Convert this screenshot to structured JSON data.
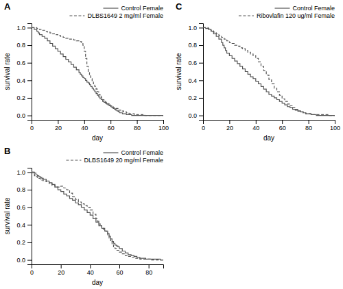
{
  "chart_data": [
    {
      "type": "step",
      "title": "A",
      "xlabel": "day",
      "ylabel": "survival rate",
      "xlim": [
        0,
        100
      ],
      "ylim": [
        -0.05,
        1.05
      ],
      "xticks": [
        0,
        20,
        40,
        60,
        80,
        100
      ],
      "yticks": [
        {
          "value": 0.0,
          "label": "0.0"
        },
        0.2,
        0.4,
        0.6,
        0.8,
        {
          "value": 1.0,
          "label": "1.0"
        }
      ],
      "legend": "upper right",
      "series": [
        {
          "name": "Control Female",
          "color": "#555555",
          "line_style": "solid",
          "x": [
            0,
            2,
            4,
            5,
            6,
            8,
            10,
            12,
            14,
            16,
            18,
            20,
            22,
            24,
            26,
            28,
            30,
            32,
            34,
            36,
            37,
            38,
            39,
            40,
            41,
            42,
            43,
            44,
            45,
            46,
            47,
            48,
            49,
            50,
            51,
            52,
            53,
            54,
            55,
            56,
            57,
            58,
            59,
            60,
            61,
            62,
            63,
            64,
            65,
            66,
            67,
            68,
            69,
            70,
            72,
            74,
            76,
            78,
            80,
            82,
            84,
            86,
            88,
            90,
            92,
            94,
            96,
            98,
            100
          ],
          "values": [
            1.0,
            0.98,
            0.96,
            0.94,
            0.92,
            0.9,
            0.88,
            0.85,
            0.82,
            0.79,
            0.76,
            0.73,
            0.7,
            0.67,
            0.64,
            0.61,
            0.58,
            0.55,
            0.52,
            0.49,
            0.47,
            0.45,
            0.43,
            0.42,
            0.4,
            0.38,
            0.37,
            0.35,
            0.33,
            0.31,
            0.29,
            0.27,
            0.25,
            0.23,
            0.21,
            0.19,
            0.18,
            0.16,
            0.15,
            0.14,
            0.13,
            0.12,
            0.11,
            0.1,
            0.09,
            0.08,
            0.07,
            0.06,
            0.05,
            0.04,
            0.03,
            0.03,
            0.02,
            0.02,
            0.01,
            0.01,
            0.0,
            0.0,
            0.0,
            0.0,
            0.0,
            0.0,
            0.0,
            0.0,
            0.0,
            0.0,
            0.0,
            0.0,
            0.0
          ]
        },
        {
          "name": "DLBS1649 2 mg/ml Female",
          "color": "#555555",
          "line_style": "dashed",
          "x": [
            0,
            2,
            4,
            6,
            8,
            10,
            12,
            14,
            16,
            18,
            20,
            22,
            24,
            26,
            28,
            30,
            32,
            34,
            36,
            38,
            39,
            40,
            41,
            42,
            43,
            44,
            45,
            46,
            47,
            48,
            49,
            50,
            51,
            52,
            53,
            54,
            55,
            56,
            57,
            58,
            59,
            60,
            62,
            64,
            66,
            68,
            70,
            72,
            74,
            76,
            78,
            80,
            82,
            84,
            86,
            88,
            90,
            92,
            94,
            96,
            98,
            100
          ],
          "values": [
            1.0,
            1.0,
            0.99,
            0.98,
            0.97,
            0.96,
            0.95,
            0.94,
            0.93,
            0.92,
            0.91,
            0.9,
            0.89,
            0.88,
            0.87,
            0.87,
            0.86,
            0.85,
            0.84,
            0.83,
            0.8,
            0.73,
            0.65,
            0.56,
            0.5,
            0.45,
            0.42,
            0.39,
            0.36,
            0.33,
            0.3,
            0.27,
            0.24,
            0.22,
            0.2,
            0.18,
            0.17,
            0.15,
            0.14,
            0.13,
            0.12,
            0.11,
            0.09,
            0.08,
            0.06,
            0.05,
            0.04,
            0.03,
            0.02,
            0.02,
            0.01,
            0.01,
            0.01,
            0.01,
            0.0,
            0.0,
            0.0,
            0.0,
            0.0,
            0.0,
            0.0,
            0.0
          ]
        }
      ]
    },
    {
      "type": "step",
      "title": "C",
      "xlabel": "day",
      "ylabel": "survival rate",
      "xlim": [
        0,
        100
      ],
      "ylim": [
        -0.05,
        1.05
      ],
      "xticks": [
        0,
        20,
        40,
        60,
        80,
        100
      ],
      "yticks": [
        {
          "value": 0.0,
          "label": "0.0"
        },
        0.2,
        0.4,
        0.6,
        0.8,
        {
          "value": 1.0,
          "label": "1.0"
        }
      ],
      "legend": "upper right",
      "series": [
        {
          "name": "Control Female",
          "color": "#555555",
          "line_style": "solid",
          "x": [
            0,
            2,
            4,
            6,
            8,
            10,
            12,
            14,
            15,
            16,
            17,
            18,
            20,
            22,
            24,
            26,
            28,
            30,
            32,
            34,
            36,
            38,
            40,
            42,
            44,
            46,
            48,
            50,
            52,
            54,
            56,
            58,
            60,
            62,
            64,
            66,
            68,
            70,
            72,
            74,
            76,
            78,
            80,
            82,
            84,
            86,
            88,
            90,
            92,
            94,
            96,
            98,
            100
          ],
          "values": [
            1.0,
            0.99,
            0.98,
            0.96,
            0.93,
            0.9,
            0.87,
            0.83,
            0.8,
            0.77,
            0.74,
            0.71,
            0.68,
            0.65,
            0.62,
            0.59,
            0.56,
            0.53,
            0.5,
            0.47,
            0.44,
            0.42,
            0.39,
            0.36,
            0.33,
            0.3,
            0.27,
            0.24,
            0.22,
            0.2,
            0.18,
            0.16,
            0.14,
            0.12,
            0.1,
            0.09,
            0.07,
            0.06,
            0.05,
            0.04,
            0.03,
            0.02,
            0.02,
            0.01,
            0.01,
            0.0,
            0.0,
            0.0,
            0.0,
            0.0,
            0.0,
            0.0,
            0.0
          ]
        },
        {
          "name": "Ribovlafin 120 ug/ml Female",
          "color": "#555555",
          "line_style": "dashed",
          "x": [
            0,
            2,
            4,
            6,
            8,
            10,
            12,
            14,
            16,
            18,
            20,
            22,
            24,
            26,
            28,
            30,
            32,
            34,
            36,
            38,
            40,
            42,
            44,
            46,
            48,
            50,
            52,
            54,
            56,
            58,
            60,
            62,
            64,
            66,
            68,
            70,
            72,
            74,
            76,
            78,
            80,
            82,
            84,
            86,
            88,
            90,
            92,
            94,
            96,
            98,
            100
          ],
          "values": [
            1.0,
            1.0,
            0.99,
            0.97,
            0.95,
            0.93,
            0.91,
            0.89,
            0.87,
            0.85,
            0.83,
            0.82,
            0.8,
            0.79,
            0.77,
            0.76,
            0.74,
            0.72,
            0.7,
            0.68,
            0.65,
            0.61,
            0.56,
            0.51,
            0.46,
            0.41,
            0.36,
            0.31,
            0.27,
            0.23,
            0.19,
            0.16,
            0.13,
            0.11,
            0.09,
            0.07,
            0.05,
            0.04,
            0.03,
            0.02,
            0.02,
            0.01,
            0.01,
            0.01,
            0.01,
            0.01,
            0.01,
            0.01,
            0.0,
            0.0,
            0.0
          ]
        }
      ]
    },
    {
      "type": "step",
      "title": "B",
      "xlabel": "day",
      "ylabel": "survival rate",
      "xlim": [
        0,
        90
      ],
      "ylim": [
        -0.05,
        1.05
      ],
      "xticks": [
        0,
        20,
        40,
        60,
        80
      ],
      "yticks": [
        {
          "value": 0.0,
          "label": "0.0"
        },
        0.2,
        0.4,
        0.6,
        0.8,
        {
          "value": 1.0,
          "label": "1.0"
        }
      ],
      "legend": "upper right",
      "series": [
        {
          "name": "Control Female",
          "color": "#555555",
          "line_style": "solid",
          "x": [
            0,
            2,
            3,
            4,
            5,
            6,
            7,
            8,
            10,
            12,
            14,
            16,
            18,
            20,
            22,
            24,
            26,
            28,
            30,
            32,
            34,
            36,
            38,
            40,
            42,
            44,
            46,
            48,
            50,
            52,
            53,
            54,
            55,
            56,
            57,
            58,
            59,
            60,
            62,
            64,
            66,
            68,
            70,
            72,
            74,
            76,
            78,
            80,
            82,
            84,
            86,
            88,
            90
          ],
          "values": [
            1.0,
            0.99,
            0.97,
            0.96,
            0.95,
            0.94,
            0.93,
            0.92,
            0.9,
            0.88,
            0.86,
            0.83,
            0.8,
            0.78,
            0.75,
            0.73,
            0.7,
            0.68,
            0.65,
            0.63,
            0.6,
            0.57,
            0.54,
            0.51,
            0.47,
            0.43,
            0.39,
            0.36,
            0.33,
            0.3,
            0.27,
            0.24,
            0.21,
            0.19,
            0.17,
            0.16,
            0.15,
            0.13,
            0.1,
            0.08,
            0.06,
            0.05,
            0.04,
            0.03,
            0.02,
            0.02,
            0.01,
            0.01,
            0.01,
            0.01,
            0.01,
            0.0,
            0.0
          ]
        },
        {
          "name": "DLBS1649 20 mg/ml Female",
          "color": "#555555",
          "line_style": "dashed",
          "x": [
            0,
            1,
            2,
            3,
            4,
            5,
            6,
            7,
            8,
            10,
            12,
            14,
            16,
            18,
            20,
            22,
            24,
            26,
            28,
            30,
            32,
            34,
            36,
            38,
            40,
            42,
            44,
            45,
            46,
            47,
            48,
            49,
            50,
            51,
            52,
            53,
            54,
            55,
            56,
            57,
            58,
            60,
            62,
            64,
            66,
            68,
            70,
            72,
            74,
            76,
            78,
            80,
            82,
            84,
            86,
            88,
            90
          ],
          "values": [
            1.0,
            0.98,
            0.96,
            0.95,
            0.94,
            0.93,
            0.92,
            0.91,
            0.9,
            0.89,
            0.87,
            0.85,
            0.83,
            0.83,
            0.84,
            0.82,
            0.8,
            0.76,
            0.72,
            0.69,
            0.66,
            0.64,
            0.62,
            0.6,
            0.57,
            0.52,
            0.47,
            0.44,
            0.41,
            0.39,
            0.37,
            0.35,
            0.33,
            0.31,
            0.28,
            0.25,
            0.22,
            0.18,
            0.15,
            0.13,
            0.11,
            0.09,
            0.07,
            0.05,
            0.04,
            0.03,
            0.02,
            0.02,
            0.01,
            0.01,
            0.01,
            0.01,
            0.0,
            0.0,
            0.0,
            0.0,
            0.0
          ]
        }
      ]
    }
  ]
}
